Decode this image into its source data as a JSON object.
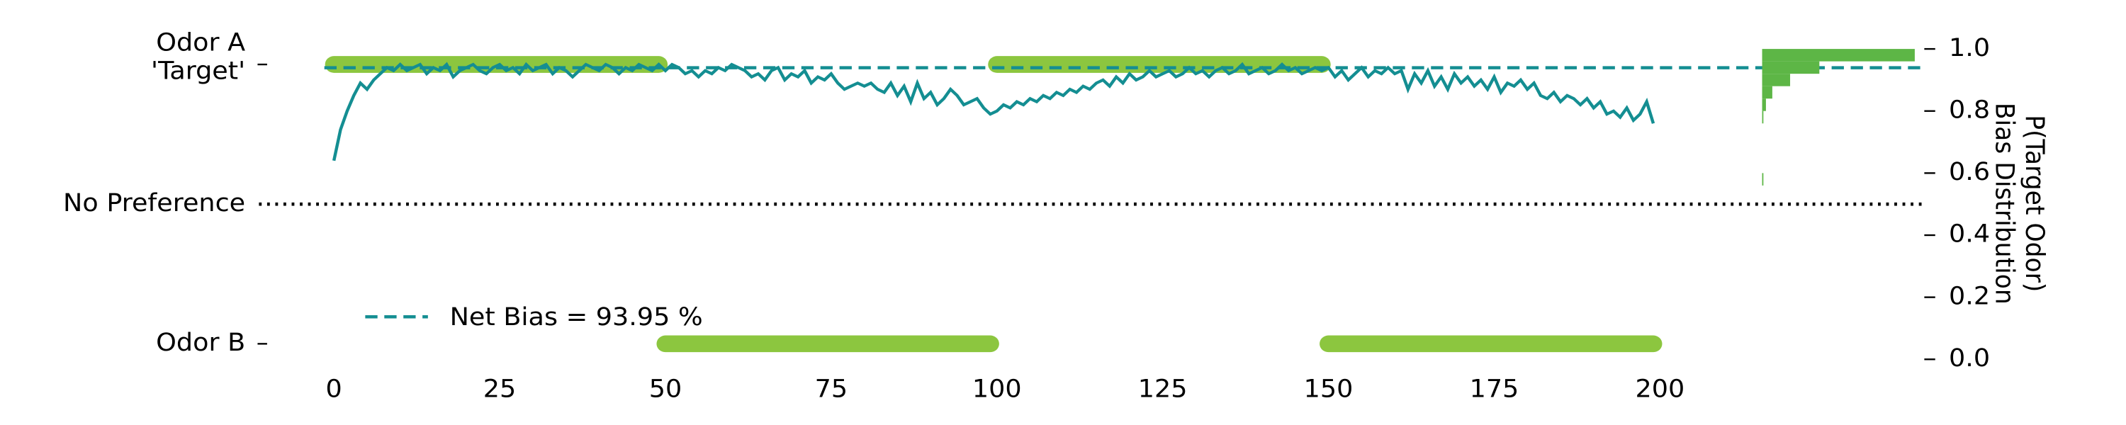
{
  "chart_data": {
    "type": "line",
    "series": [
      {
        "name": "P(Target Odor)",
        "color": "#148e92",
        "x": [
          0,
          1,
          2,
          3,
          4,
          5,
          6,
          7,
          8,
          9,
          10,
          11,
          12,
          13,
          14,
          15,
          16,
          17,
          18,
          19,
          20,
          21,
          22,
          23,
          24,
          25,
          26,
          27,
          28,
          29,
          30,
          31,
          32,
          33,
          34,
          35,
          36,
          37,
          38,
          39,
          40,
          41,
          42,
          43,
          44,
          45,
          46,
          47,
          48,
          49,
          50,
          51,
          52,
          53,
          54,
          55,
          56,
          57,
          58,
          59,
          60,
          61,
          62,
          63,
          64,
          65,
          66,
          67,
          68,
          69,
          70,
          71,
          72,
          73,
          74,
          75,
          76,
          77,
          78,
          79,
          80,
          81,
          82,
          83,
          84,
          85,
          86,
          87,
          88,
          89,
          90,
          91,
          92,
          93,
          94,
          95,
          96,
          97,
          98,
          99,
          100,
          101,
          102,
          103,
          104,
          105,
          106,
          107,
          108,
          109,
          110,
          111,
          112,
          113,
          114,
          115,
          116,
          117,
          118,
          119,
          120,
          121,
          122,
          123,
          124,
          125,
          126,
          127,
          128,
          129,
          130,
          131,
          132,
          133,
          134,
          135,
          136,
          137,
          138,
          139,
          140,
          141,
          142,
          143,
          144,
          145,
          146,
          147,
          148,
          149,
          150,
          151,
          152,
          153,
          154,
          155,
          156,
          157,
          158,
          159,
          160,
          161,
          162,
          163,
          164,
          165,
          166,
          167,
          168,
          169,
          170,
          171,
          172,
          173,
          174,
          175,
          176,
          177,
          178,
          179,
          180,
          181,
          182,
          183,
          184,
          185,
          186,
          187,
          188,
          189,
          190,
          191,
          192,
          193,
          194,
          195,
          196,
          197,
          198,
          199
        ],
        "values": [
          0.64,
          0.74,
          0.8,
          0.85,
          0.89,
          0.87,
          0.9,
          0.92,
          0.94,
          0.93,
          0.95,
          0.93,
          0.94,
          0.95,
          0.92,
          0.94,
          0.93,
          0.95,
          0.91,
          0.93,
          0.94,
          0.95,
          0.93,
          0.92,
          0.94,
          0.95,
          0.93,
          0.94,
          0.92,
          0.95,
          0.93,
          0.94,
          0.95,
          0.92,
          0.94,
          0.93,
          0.91,
          0.93,
          0.95,
          0.94,
          0.93,
          0.95,
          0.94,
          0.92,
          0.94,
          0.93,
          0.95,
          0.94,
          0.93,
          0.95,
          0.93,
          0.95,
          0.94,
          0.92,
          0.93,
          0.91,
          0.93,
          0.92,
          0.94,
          0.93,
          0.95,
          0.94,
          0.93,
          0.91,
          0.92,
          0.9,
          0.93,
          0.94,
          0.9,
          0.92,
          0.91,
          0.93,
          0.89,
          0.91,
          0.9,
          0.92,
          0.89,
          0.87,
          0.88,
          0.89,
          0.88,
          0.89,
          0.87,
          0.86,
          0.89,
          0.85,
          0.88,
          0.83,
          0.89,
          0.84,
          0.86,
          0.82,
          0.84,
          0.87,
          0.85,
          0.82,
          0.83,
          0.84,
          0.81,
          0.79,
          0.8,
          0.82,
          0.81,
          0.83,
          0.82,
          0.84,
          0.83,
          0.85,
          0.84,
          0.86,
          0.85,
          0.87,
          0.86,
          0.88,
          0.87,
          0.89,
          0.9,
          0.88,
          0.91,
          0.89,
          0.92,
          0.9,
          0.91,
          0.93,
          0.91,
          0.92,
          0.93,
          0.91,
          0.92,
          0.94,
          0.92,
          0.93,
          0.91,
          0.93,
          0.94,
          0.92,
          0.93,
          0.95,
          0.92,
          0.93,
          0.94,
          0.92,
          0.93,
          0.95,
          0.93,
          0.94,
          0.92,
          0.93,
          0.94,
          0.93,
          0.94,
          0.91,
          0.93,
          0.9,
          0.92,
          0.94,
          0.91,
          0.93,
          0.92,
          0.94,
          0.92,
          0.93,
          0.87,
          0.92,
          0.89,
          0.93,
          0.88,
          0.91,
          0.87,
          0.92,
          0.89,
          0.91,
          0.88,
          0.9,
          0.87,
          0.91,
          0.86,
          0.89,
          0.88,
          0.9,
          0.87,
          0.89,
          0.85,
          0.84,
          0.86,
          0.83,
          0.85,
          0.84,
          0.82,
          0.84,
          0.81,
          0.83,
          0.79,
          0.8,
          0.78,
          0.81,
          0.77,
          0.79,
          0.83,
          0.76
        ]
      }
    ],
    "odors": [
      {
        "name": "Odor A",
        "level": 0.95,
        "color": "#8cc63f",
        "x_ranges": [
          [
            0,
            50
          ],
          [
            100,
            150
          ]
        ]
      },
      {
        "name": "Odor B",
        "level": 0.05,
        "color": "#8cc63f",
        "x_ranges": [
          [
            50,
            100
          ],
          [
            150,
            200
          ]
        ]
      }
    ],
    "net_bias": {
      "value": 0.9395,
      "label": "Net Bias = 93.95 %",
      "color": "#148e92"
    },
    "no_preference": {
      "value": 0.5,
      "label": "No Preference"
    },
    "left_ticks": [
      {
        "value": 0.95,
        "label": [
          "Odor A",
          "'Target'"
        ],
        "color": "#1a9e5c"
      },
      {
        "value": 0.05,
        "label": [
          "Odor B"
        ],
        "color": "#000000"
      }
    ],
    "bias_distribution": {
      "name": "Bias Distribution",
      "color": "#5db646",
      "bins": [
        0.56,
        0.6,
        0.64,
        0.68,
        0.72,
        0.76,
        0.8,
        0.84,
        0.88,
        0.92,
        0.96,
        1.0
      ],
      "counts": [
        1,
        0,
        0,
        0,
        0,
        1,
        3,
        8,
        22,
        45,
        120
      ],
      "xlim": [
        0,
        120
      ]
    },
    "y_label": "P(Target Odor)",
    "y2_label": "Bias Distribution",
    "xlim": [
      -10,
      215
    ],
    "xticks": [
      0,
      25,
      50,
      75,
      100,
      125,
      150,
      175,
      200
    ],
    "ylim": [
      0,
      1
    ],
    "yticks": [
      {
        "value": 0,
        "label": "0.0"
      },
      0.2,
      0.4,
      0.6,
      0.8,
      {
        "value": 1,
        "label": "1.0"
      }
    ]
  }
}
